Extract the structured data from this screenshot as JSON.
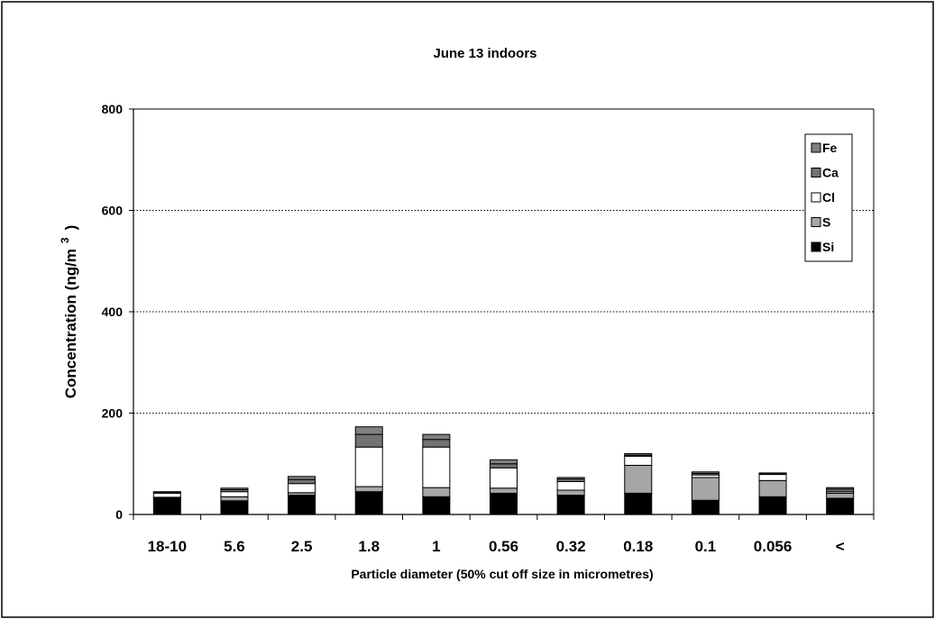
{
  "chart_data": {
    "type": "bar",
    "stacked": true,
    "title": "June 13 indoors",
    "xlabel": "Particle diameter (50% cut off size in micrometres)",
    "ylabel": "Concentration (ng/m",
    "ylabel_superscript": "3",
    "ylabel_close": ")",
    "ylim": [
      0,
      800
    ],
    "yticks": [
      "0",
      "200",
      "400",
      "600",
      "800"
    ],
    "ytick_values": [
      0,
      200,
      400,
      600,
      800
    ],
    "grid": "horizontal dotted",
    "legend_position": "top-right",
    "categories": [
      "18-10",
      "5.6",
      "2.5",
      "1.8",
      "1",
      "0.56",
      "0.32",
      "0.18",
      "0.1",
      "0.056",
      "<"
    ],
    "series": [
      {
        "name": "Si",
        "color": "#000000",
        "values": [
          32,
          27,
          38,
          45,
          35,
          42,
          38,
          42,
          28,
          35,
          32
        ]
      },
      {
        "name": "S",
        "color": "#a6a6a6",
        "values": [
          2,
          8,
          5,
          10,
          18,
          10,
          10,
          55,
          45,
          32,
          10
        ]
      },
      {
        "name": "Cl",
        "color": "#ffffff",
        "values": [
          8,
          10,
          18,
          78,
          80,
          40,
          17,
          18,
          5,
          12,
          3
        ]
      },
      {
        "name": "Ca",
        "color": "#737373",
        "values": [
          1,
          4,
          8,
          25,
          15,
          8,
          5,
          2,
          3,
          1,
          5
        ]
      },
      {
        "name": "Fe",
        "color": "#808080",
        "values": [
          2,
          3,
          6,
          15,
          10,
          8,
          3,
          3,
          3,
          2,
          3
        ]
      }
    ],
    "legend_order": [
      "Fe",
      "Ca",
      "Cl",
      "S",
      "Si"
    ],
    "legend_labels": [
      "Fe",
      "Ca",
      "Cl",
      "S",
      "Si"
    ]
  }
}
